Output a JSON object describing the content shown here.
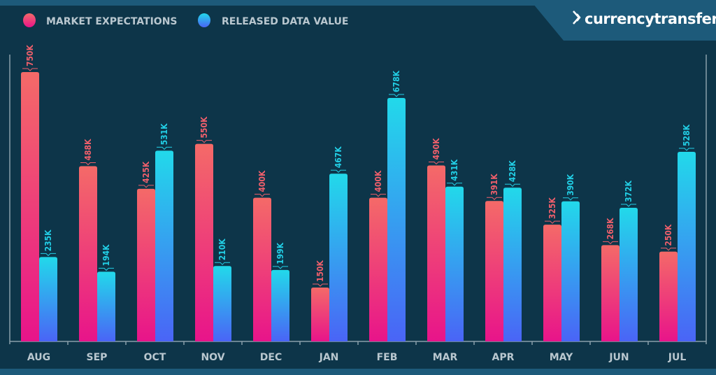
{
  "brand": {
    "name": "currencytransfer"
  },
  "colors": {
    "background": "#0d3549",
    "band": "#1d5a7a",
    "expect_top": "#f46a68",
    "expect_bottom": "#e8148a",
    "released_top": "#22d9ea",
    "released_bottom": "#4a64f6",
    "expect_label": "#ef5f6b",
    "released_label": "#22cfe6",
    "axis": "#8aa0ab"
  },
  "chart_data": {
    "type": "bar",
    "title": "",
    "xlabel": "",
    "ylabel": "",
    "ylim": [
      0,
      750
    ],
    "grid": false,
    "legend_position": "top-left",
    "categories": [
      "AUG",
      "SEP",
      "OCT",
      "NOV",
      "DEC",
      "JAN",
      "FEB",
      "MAR",
      "APR",
      "MAY",
      "JUN",
      "JUL"
    ],
    "series": [
      {
        "name": "MARKET EXPECTATIONS",
        "values": [
          750,
          488,
          425,
          550,
          400,
          150,
          400,
          490,
          391,
          325,
          268,
          250
        ],
        "labels": [
          "750K",
          "488K",
          "425K",
          "550K",
          "400K",
          "150K",
          "400K",
          "490K",
          "391K",
          "325K",
          "268K",
          "250K"
        ]
      },
      {
        "name": "RELEASED DATA VALUE",
        "values": [
          235,
          194,
          531,
          210,
          199,
          467,
          678,
          431,
          428,
          390,
          372,
          528
        ],
        "labels": [
          "235K",
          "194K",
          "531K",
          "210K",
          "199K",
          "467K",
          "678K",
          "431K",
          "428K",
          "390K",
          "372K",
          "528K"
        ]
      }
    ]
  }
}
